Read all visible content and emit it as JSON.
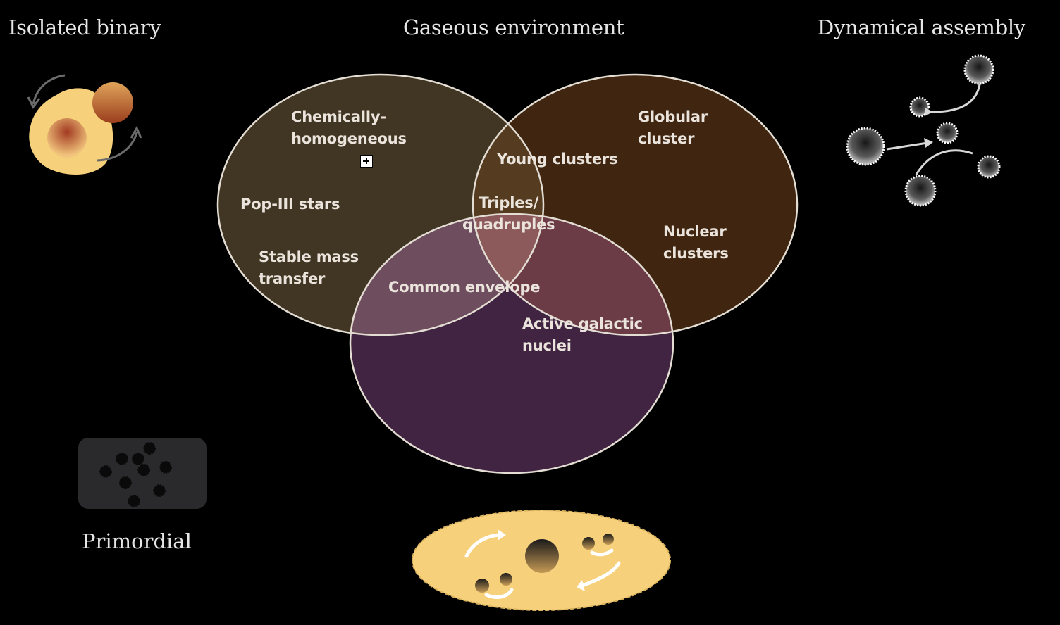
{
  "titles": {
    "isolated_binary": "Isolated binary",
    "gaseous_environment": "Gaseous environment",
    "dynamical_assembly": "Dynamical assembly",
    "primordial": "Primordial"
  },
  "venn": {
    "circles": [
      {
        "name": "isolated-binary",
        "fill": "#413623"
      },
      {
        "name": "dynamical-assembly",
        "fill": "#402611"
      },
      {
        "name": "gaseous-environment",
        "fill": "#402442"
      }
    ],
    "overlap_colors": {
      "isolated_gaseous": "#6d4d5e",
      "dynamical_gaseous": "#6b3b46",
      "isolated_dynamical": "#553b20",
      "triple": "#8c5a5a"
    },
    "outline_color": "#e3ddd3",
    "labels": {
      "chemically_homogeneous": "Chemically-\nhomogeneous",
      "pop_iii": "Pop-III stars",
      "stable_mass_transfer": "Stable mass\ntransfer",
      "common_envelope": "Common envelope",
      "young_clusters": "Young clusters",
      "triples": "Triples/\nquadruples",
      "globular": "Globular\ncluster",
      "nuclear": "Nuclear\nclusters",
      "agn": "Active galactic\nnuclei"
    }
  },
  "colors": {
    "background": "#000000",
    "accent_yellow": "#f6d07a",
    "text": "#e6e6e6",
    "label_text": "#ebe4dc"
  },
  "icons": {
    "isolated": "binary-star-icon",
    "dynamical": "dynamical-assembly-icon",
    "primordial": "primordial-black-holes-icon",
    "gaseous": "agn-disk-icon"
  }
}
